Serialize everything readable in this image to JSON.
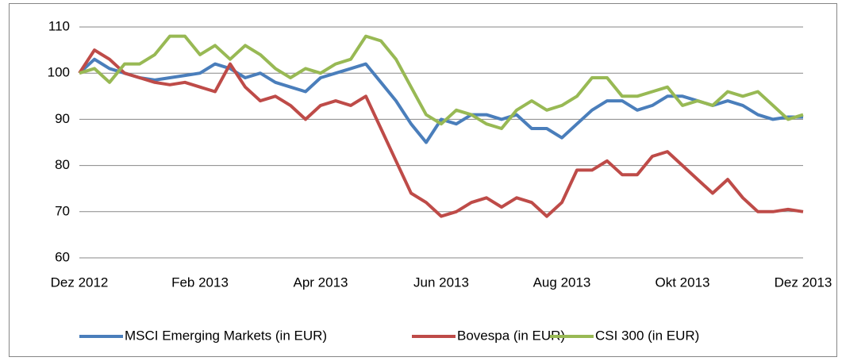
{
  "chart_data": {
    "type": "line",
    "categories": [
      "Dez 2012",
      null,
      null,
      null,
      null,
      null,
      null,
      null,
      "Feb 2013",
      null,
      null,
      null,
      null,
      null,
      null,
      null,
      "Apr 2013",
      null,
      null,
      null,
      null,
      null,
      null,
      null,
      "Jun 2013",
      null,
      null,
      null,
      null,
      null,
      null,
      null,
      "Aug 2013",
      null,
      null,
      null,
      null,
      null,
      null,
      null,
      "Okt 2013",
      null,
      null,
      null,
      null,
      null,
      null,
      null,
      "Dez 2013"
    ],
    "series": [
      {
        "name": "MSCI Emerging Markets (in EUR)",
        "color": "#4a7ebb",
        "values": [
          100,
          103,
          101,
          100,
          99,
          98.5,
          99,
          99.5,
          100,
          102,
          101,
          99,
          100,
          98,
          97,
          96,
          99,
          100,
          101,
          102,
          98,
          94,
          89,
          85,
          90,
          89,
          91,
          91,
          90,
          91,
          88,
          88,
          86,
          89,
          92,
          94,
          94,
          92,
          93,
          95,
          95,
          94,
          93,
          94,
          93,
          91,
          90,
          90.5,
          90.5
        ]
      },
      {
        "name": "Bovespa (in EUR)",
        "color": "#be4b48",
        "values": [
          100,
          105,
          103,
          100,
          99,
          98,
          97.5,
          98,
          97,
          96,
          102,
          97,
          94,
          95,
          93,
          90,
          93,
          94,
          93,
          95,
          88,
          81,
          74,
          72,
          69,
          70,
          72,
          73,
          71,
          73,
          72,
          69,
          72,
          79,
          79,
          81,
          78,
          78,
          82,
          83,
          80,
          77,
          74,
          77,
          73,
          70,
          70,
          70.5,
          70
        ]
      },
      {
        "name": "CSI 300 (in EUR)",
        "color": "#98b954",
        "values": [
          100,
          101,
          98,
          102,
          102,
          104,
          108,
          108,
          104,
          106,
          103,
          106,
          104,
          101,
          99,
          101,
          100,
          102,
          103,
          108,
          107,
          103,
          97,
          91,
          89,
          92,
          91,
          89,
          88,
          92,
          94,
          92,
          93,
          95,
          99,
          99,
          95,
          95,
          96,
          97,
          93,
          94,
          93,
          96,
          95,
          96,
          93,
          90,
          91
        ]
      }
    ],
    "ylim": [
      60,
      110
    ],
    "yticks": [
      60,
      70,
      80,
      90,
      100,
      110
    ],
    "grid": true,
    "legend": "bottom"
  }
}
